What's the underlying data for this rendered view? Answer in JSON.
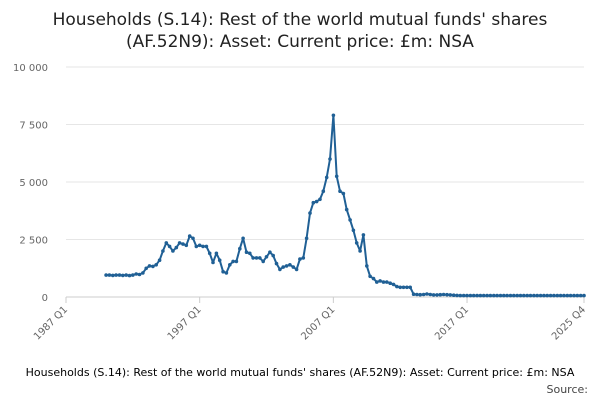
{
  "chart_data": {
    "type": "line",
    "title_lines": [
      "Households (S.14): Rest of the world mutual funds' shares",
      "(AF.52N9): Asset: Current price: £m: NSA"
    ],
    "footer_label": "Households (S.14): Rest of the world mutual funds' shares (AF.52N9): Asset: Current price: £m: NSA",
    "source_label": "Source:",
    "xlabel": "",
    "ylabel": "",
    "y_ticks": [
      {
        "value": 0,
        "label": "0"
      },
      {
        "value": 2500,
        "label": "2 500"
      },
      {
        "value": 5000,
        "label": "5 000"
      },
      {
        "value": 7500,
        "label": "7 500"
      },
      {
        "value": 10000,
        "label": "10 000"
      }
    ],
    "ylim": [
      0,
      10000
    ],
    "xlim": [
      1987.0,
      2025.75
    ],
    "x_ticks": [
      {
        "value": 1987.0,
        "label": "1987 Q1"
      },
      {
        "value": 1997.0,
        "label": "1997 Q1"
      },
      {
        "value": 2007.0,
        "label": "2007 Q1"
      },
      {
        "value": 2017.0,
        "label": "2017 Q1"
      },
      {
        "value": 2025.75,
        "label": "2025 Q4"
      }
    ],
    "line_color": "#206095",
    "grid": true,
    "series": [
      {
        "name": "Households (S.14): Rest of the world mutual funds' shares (AF.52N9): Asset: Current price: £m: NSA",
        "points": [
          [
            1990.0,
            950
          ],
          [
            1990.25,
            950
          ],
          [
            1990.5,
            940
          ],
          [
            1990.75,
            950
          ],
          [
            1991.0,
            950
          ],
          [
            1991.25,
            940
          ],
          [
            1991.5,
            950
          ],
          [
            1991.75,
            930
          ],
          [
            1992.0,
            950
          ],
          [
            1992.25,
            1000
          ],
          [
            1992.5,
            980
          ],
          [
            1992.75,
            1050
          ],
          [
            1993.0,
            1250
          ],
          [
            1993.25,
            1350
          ],
          [
            1993.5,
            1330
          ],
          [
            1993.75,
            1400
          ],
          [
            1994.0,
            1600
          ],
          [
            1994.25,
            2000
          ],
          [
            1994.5,
            2350
          ],
          [
            1994.75,
            2200
          ],
          [
            1995.0,
            2000
          ],
          [
            1995.25,
            2150
          ],
          [
            1995.5,
            2350
          ],
          [
            1995.75,
            2300
          ],
          [
            1996.0,
            2250
          ],
          [
            1996.25,
            2650
          ],
          [
            1996.5,
            2550
          ],
          [
            1996.75,
            2200
          ],
          [
            1997.0,
            2250
          ],
          [
            1997.25,
            2200
          ],
          [
            1997.5,
            2200
          ],
          [
            1997.75,
            1900
          ],
          [
            1998.0,
            1500
          ],
          [
            1998.25,
            1900
          ],
          [
            1998.5,
            1600
          ],
          [
            1998.75,
            1100
          ],
          [
            1999.0,
            1050
          ],
          [
            1999.25,
            1400
          ],
          [
            1999.5,
            1550
          ],
          [
            1999.75,
            1550
          ],
          [
            2000.0,
            2100
          ],
          [
            2000.25,
            2550
          ],
          [
            2000.5,
            1950
          ],
          [
            2000.75,
            1900
          ],
          [
            2001.0,
            1700
          ],
          [
            2001.25,
            1700
          ],
          [
            2001.5,
            1700
          ],
          [
            2001.75,
            1550
          ],
          [
            2002.0,
            1750
          ],
          [
            2002.25,
            1950
          ],
          [
            2002.5,
            1800
          ],
          [
            2002.75,
            1450
          ],
          [
            2003.0,
            1200
          ],
          [
            2003.25,
            1300
          ],
          [
            2003.5,
            1350
          ],
          [
            2003.75,
            1400
          ],
          [
            2004.0,
            1300
          ],
          [
            2004.25,
            1200
          ],
          [
            2004.5,
            1650
          ],
          [
            2004.75,
            1700
          ],
          [
            2005.0,
            2550
          ],
          [
            2005.25,
            3650
          ],
          [
            2005.5,
            4100
          ],
          [
            2005.75,
            4150
          ],
          [
            2006.0,
            4250
          ],
          [
            2006.25,
            4600
          ],
          [
            2006.5,
            5200
          ],
          [
            2006.75,
            6000
          ],
          [
            2007.0,
            7900
          ],
          [
            2007.25,
            5250
          ],
          [
            2007.5,
            4600
          ],
          [
            2007.75,
            4500
          ],
          [
            2008.0,
            3800
          ],
          [
            2008.25,
            3350
          ],
          [
            2008.5,
            2900
          ],
          [
            2008.75,
            2350
          ],
          [
            2009.0,
            2000
          ],
          [
            2009.25,
            2700
          ],
          [
            2009.5,
            1350
          ],
          [
            2009.75,
            900
          ],
          [
            2010.0,
            800
          ],
          [
            2010.25,
            650
          ],
          [
            2010.5,
            700
          ],
          [
            2010.75,
            650
          ],
          [
            2011.0,
            650
          ],
          [
            2011.25,
            600
          ],
          [
            2011.5,
            550
          ],
          [
            2011.75,
            450
          ],
          [
            2012.0,
            420
          ],
          [
            2012.25,
            420
          ],
          [
            2012.5,
            420
          ],
          [
            2012.75,
            420
          ],
          [
            2013.0,
            120
          ],
          [
            2013.25,
            110
          ],
          [
            2013.5,
            100
          ],
          [
            2013.75,
            110
          ],
          [
            2014.0,
            130
          ],
          [
            2014.25,
            110
          ],
          [
            2014.5,
            90
          ],
          [
            2014.75,
            90
          ],
          [
            2015.0,
            100
          ],
          [
            2015.25,
            110
          ],
          [
            2015.5,
            100
          ],
          [
            2015.75,
            90
          ],
          [
            2016.0,
            80
          ],
          [
            2016.25,
            70
          ],
          [
            2016.5,
            60
          ],
          [
            2016.75,
            60
          ],
          [
            2017.0,
            60
          ],
          [
            2017.25,
            60
          ],
          [
            2017.5,
            60
          ],
          [
            2017.75,
            60
          ],
          [
            2018.0,
            60
          ],
          [
            2018.25,
            60
          ],
          [
            2018.5,
            60
          ],
          [
            2018.75,
            60
          ],
          [
            2019.0,
            60
          ],
          [
            2019.25,
            60
          ],
          [
            2019.5,
            60
          ],
          [
            2019.75,
            60
          ],
          [
            2020.0,
            60
          ],
          [
            2020.25,
            60
          ],
          [
            2020.5,
            60
          ],
          [
            2020.75,
            60
          ],
          [
            2021.0,
            60
          ],
          [
            2021.25,
            60
          ],
          [
            2021.5,
            60
          ],
          [
            2021.75,
            60
          ],
          [
            2022.0,
            60
          ],
          [
            2022.25,
            60
          ],
          [
            2022.5,
            60
          ],
          [
            2022.75,
            60
          ],
          [
            2023.0,
            60
          ],
          [
            2023.25,
            60
          ],
          [
            2023.5,
            60
          ],
          [
            2023.75,
            60
          ],
          [
            2024.0,
            60
          ],
          [
            2024.25,
            60
          ],
          [
            2024.5,
            60
          ],
          [
            2024.75,
            60
          ],
          [
            2025.0,
            60
          ],
          [
            2025.25,
            60
          ],
          [
            2025.5,
            60
          ],
          [
            2025.75,
            60
          ]
        ]
      }
    ]
  }
}
